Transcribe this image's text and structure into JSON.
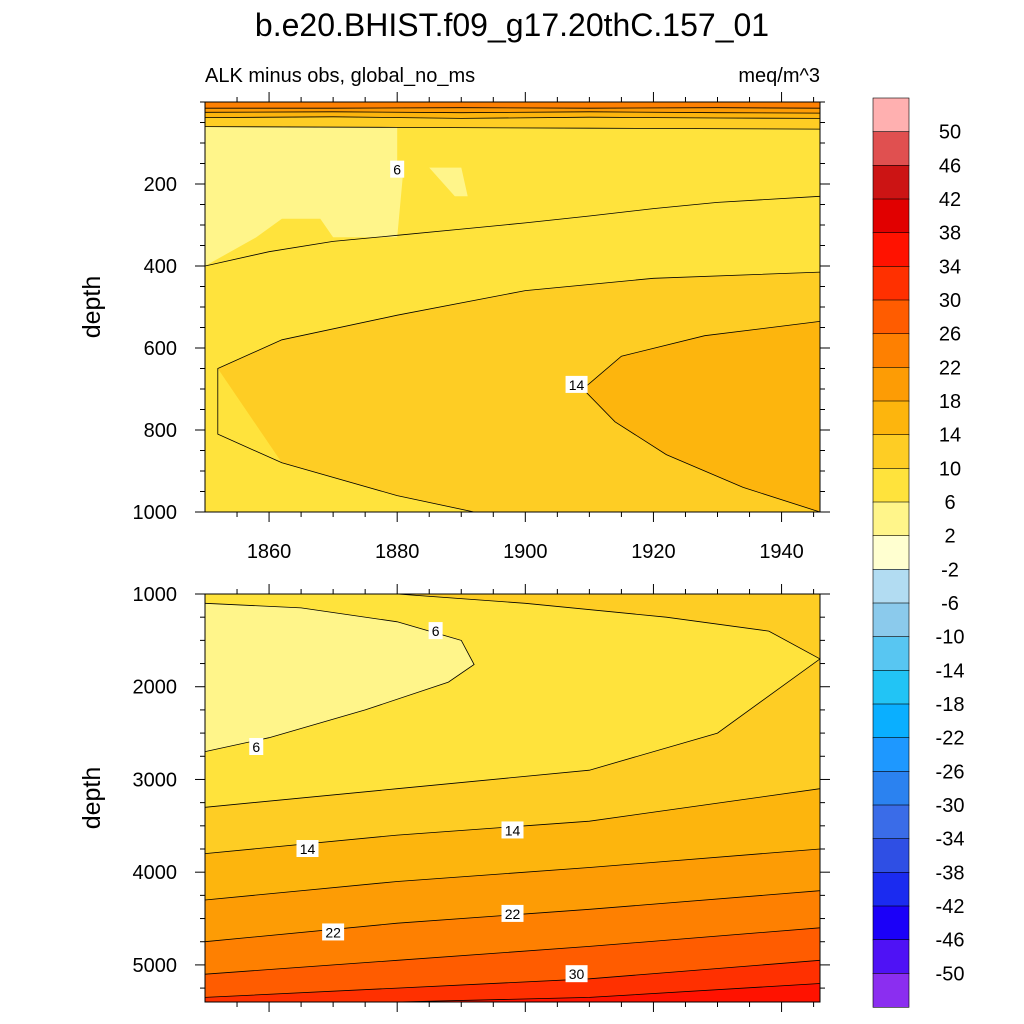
{
  "figure": {
    "title": "b.e20.BHIST.f09_g17.20thC.157_01",
    "subtitle_left": "ALK minus obs, global_no_ms",
    "subtitle_right": "meq/m^3"
  },
  "colors": {
    "bands": [
      "#8b2ef0",
      "#4f12f5",
      "#1b00f8",
      "#1b2bf0",
      "#2f4fe4",
      "#3a6ce8",
      "#2b82f0",
      "#1e98ff",
      "#0aafff",
      "#22c4f5",
      "#58c6f2",
      "#8bcaec",
      "#b2dcf2",
      "#ffffd0",
      "#fff58a",
      "#ffe33c",
      "#fecd24",
      "#fdb50d",
      "#fd9c05",
      "#fe8001",
      "#ff5c00",
      "#ff3000",
      "#ff1200",
      "#e10000",
      "#cc1414",
      "#e05050",
      "#ffb0b0"
    ]
  },
  "chart_data": [
    {
      "type": "contour",
      "panel": "upper",
      "ylabel": "depth",
      "x_range": [
        1850,
        1946
      ],
      "y_range": [
        0,
        1000
      ],
      "y_inverted": true,
      "x_ticks": [
        1860,
        1880,
        1900,
        1920,
        1940
      ],
      "y_ticks": [
        200,
        400,
        600,
        800,
        1000
      ],
      "contour_levels_shown": [
        2,
        6,
        10,
        14,
        18,
        22
      ],
      "contours": [
        {
          "level": 22,
          "line": [
            [
              1850,
              15
            ],
            [
              1870,
              15
            ],
            [
              1890,
              14
            ],
            [
              1910,
              15
            ],
            [
              1930,
              14
            ],
            [
              1946,
              15
            ]
          ]
        },
        {
          "level": 18,
          "line": [
            [
              1850,
              25
            ],
            [
              1870,
              24
            ],
            [
              1890,
              26
            ],
            [
              1910,
              24
            ],
            [
              1930,
              26
            ],
            [
              1946,
              27
            ]
          ]
        },
        {
          "level": 14,
          "line": [
            [
              1850,
              38
            ],
            [
              1870,
              36
            ],
            [
              1890,
              40
            ],
            [
              1910,
              37
            ],
            [
              1930,
              39
            ],
            [
              1946,
              40
            ]
          ]
        },
        {
          "level": 10,
          "line": [
            [
              1850,
              60
            ],
            [
              1880,
              62
            ],
            [
              1910,
              64
            ],
            [
              1946,
              66
            ]
          ]
        },
        {
          "level": 6,
          "line": [
            [
              1850,
              400
            ],
            [
              1860,
              365
            ],
            [
              1870,
              340
            ],
            [
              1880,
              325
            ],
            [
              1890,
              310
            ],
            [
              1900,
              295
            ],
            [
              1910,
              278
            ],
            [
              1920,
              260
            ],
            [
              1930,
              245
            ],
            [
              1946,
              230
            ]
          ]
        },
        {
          "level": 10,
          "line": [
            [
              1946,
              1000
            ],
            [
              1934,
              1000
            ],
            [
              1920,
              1000
            ],
            [
              1900,
              1000
            ],
            [
              1892,
              1000
            ],
            [
              1880,
              960
            ],
            [
              1862,
              880
            ],
            [
              1852,
              810
            ],
            [
              1852,
              650
            ],
            [
              1862,
              580
            ],
            [
              1880,
              520
            ],
            [
              1900,
              460
            ],
            [
              1920,
              430
            ],
            [
              1946,
              415
            ]
          ]
        },
        {
          "level": 14,
          "line": [
            [
              1946,
              1000
            ],
            [
              1934,
              940
            ],
            [
              1922,
              860
            ],
            [
              1914,
              780
            ],
            [
              1909,
              700
            ],
            [
              1915,
              620
            ],
            [
              1928,
              570
            ],
            [
              1946,
              535
            ]
          ]
        }
      ],
      "regions": [
        {
          "band": 14,
          "polygon": [
            [
              1850,
              60
            ],
            [
              1946,
              66
            ],
            [
              1946,
              15
            ],
            [
              1850,
              15
            ]
          ]
        },
        {
          "band": 15,
          "polygon": [
            [
              1850,
              60
            ],
            [
              1880,
              62
            ],
            [
              1910,
              64
            ],
            [
              1946,
              66
            ],
            [
              1946,
              230
            ],
            [
              1930,
              245
            ],
            [
              1920,
              260
            ],
            [
              1910,
              278
            ],
            [
              1900,
              295
            ],
            [
              1890,
              310
            ],
            [
              1880,
              325
            ],
            [
              1870,
              340
            ],
            [
              1860,
              365
            ],
            [
              1850,
              400
            ]
          ]
        }
      ],
      "annotations": [
        {
          "text": "6",
          "x": 1880,
          "y": 165
        },
        {
          "text": "14",
          "x": 1908,
          "y": 690
        }
      ]
    },
    {
      "type": "contour",
      "panel": "lower",
      "ylabel": "depth",
      "x_range": [
        1850,
        1946
      ],
      "y_range": [
        1000,
        5400
      ],
      "y_inverted": true,
      "x_ticks": [
        1860,
        1880,
        1900,
        1920,
        1940
      ],
      "y_ticks": [
        1000,
        2000,
        3000,
        4000,
        5000
      ],
      "contour_levels_shown": [
        2,
        6,
        10,
        14,
        18,
        22,
        26,
        30,
        34,
        38
      ],
      "contours": [
        {
          "level": 6,
          "line": [
            [
              1850,
              1100
            ],
            [
              1865,
              1150
            ],
            [
              1880,
              1300
            ],
            [
              1890,
              1500
            ],
            [
              1892,
              1760
            ],
            [
              1888,
              1950
            ],
            [
              1875,
              2250
            ],
            [
              1860,
              2550
            ],
            [
              1850,
              2700
            ]
          ]
        },
        {
          "level": 10,
          "line": [
            [
              1850,
              3300
            ],
            [
              1880,
              3100
            ],
            [
              1910,
              2900
            ],
            [
              1930,
              2500
            ],
            [
              1940,
              2000
            ],
            [
              1946,
              1700
            ],
            [
              1938,
              1400
            ],
            [
              1922,
              1250
            ],
            [
              1900,
              1100
            ],
            [
              1880,
              1000
            ]
          ]
        },
        {
          "level": 14,
          "line": [
            [
              1850,
              3800
            ],
            [
              1880,
              3600
            ],
            [
              1910,
              3450
            ],
            [
              1946,
              3100
            ]
          ]
        },
        {
          "level": 18,
          "line": [
            [
              1850,
              4300
            ],
            [
              1880,
              4100
            ],
            [
              1910,
              3950
            ],
            [
              1946,
              3750
            ]
          ]
        },
        {
          "level": 22,
          "line": [
            [
              1850,
              4750
            ],
            [
              1880,
              4550
            ],
            [
              1910,
              4400
            ],
            [
              1946,
              4200
            ]
          ]
        },
        {
          "level": 26,
          "line": [
            [
              1850,
              5100
            ],
            [
              1880,
              4950
            ],
            [
              1910,
              4800
            ],
            [
              1946,
              4600
            ]
          ]
        },
        {
          "level": 30,
          "line": [
            [
              1850,
              5350
            ],
            [
              1880,
              5250
            ],
            [
              1910,
              5150
            ],
            [
              1946,
              4950
            ]
          ]
        },
        {
          "level": 34,
          "line": [
            [
              1880,
              5400
            ],
            [
              1910,
              5350
            ],
            [
              1946,
              5200
            ]
          ]
        }
      ],
      "annotations": [
        {
          "text": "6",
          "x": 1886,
          "y": 1400
        },
        {
          "text": "6",
          "x": 1858,
          "y": 2650
        },
        {
          "text": "14",
          "x": 1866,
          "y": 3750
        },
        {
          "text": "14",
          "x": 1898,
          "y": 3550
        },
        {
          "text": "22",
          "x": 1870,
          "y": 4650
        },
        {
          "text": "22",
          "x": 1898,
          "y": 4450
        },
        {
          "text": "30",
          "x": 1908,
          "y": 5100
        }
      ]
    }
  ],
  "colorbar": {
    "labels": [
      "50",
      "46",
      "42",
      "38",
      "34",
      "30",
      "26",
      "22",
      "18",
      "14",
      "10",
      "6",
      "2",
      "-2",
      "-6",
      "-10",
      "-14",
      "-18",
      "-22",
      "-26",
      "-30",
      "-34",
      "-38",
      "-42",
      "-46",
      "-50"
    ]
  }
}
